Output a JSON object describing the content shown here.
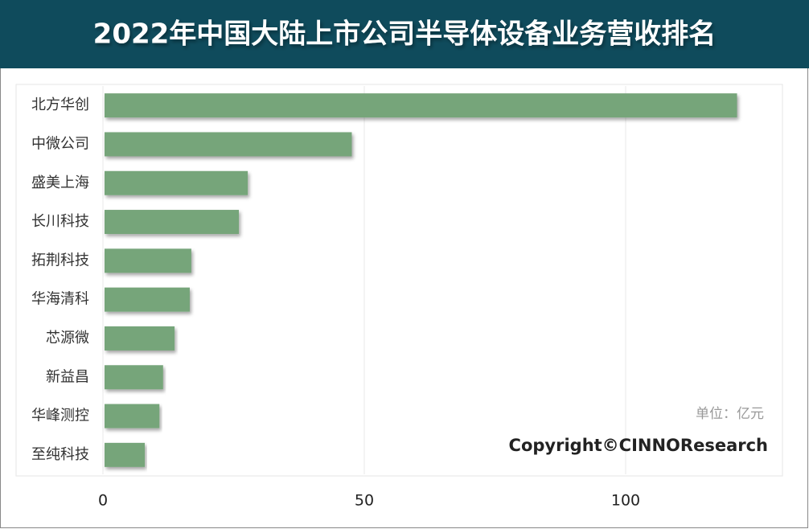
{
  "chart_data": {
    "type": "bar",
    "orientation": "horizontal",
    "title": "2022年中国大陆上市公司半导体设备业务营收排名",
    "categories": [
      "北方华创",
      "中微公司",
      "盛美上海",
      "长川科技",
      "拓荆科技",
      "华海清科",
      "芯源微",
      "新益昌",
      "华峰测控",
      "至纯科技"
    ],
    "values": [
      121,
      47.3,
      27.4,
      25.7,
      16.6,
      16.3,
      13.4,
      11.2,
      10.5,
      7.7
    ],
    "color": "#76a57a",
    "xlim": [
      0,
      130
    ],
    "xticks": [
      0,
      50,
      100
    ],
    "grid": true,
    "annotations": [
      "单位：亿元",
      "Copyright©CINNOResearch"
    ]
  }
}
